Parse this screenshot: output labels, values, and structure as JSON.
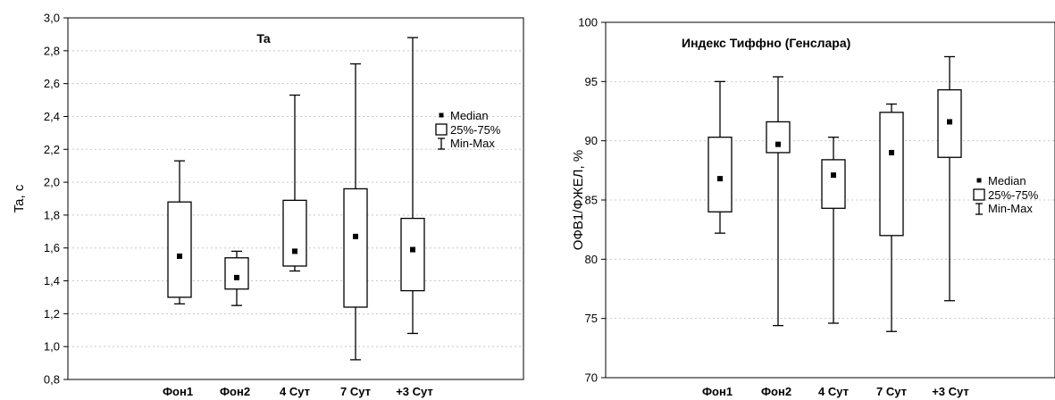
{
  "chart_data": [
    {
      "type": "boxplot",
      "title": "Ta",
      "xlabel": "",
      "ylabel": "Ta, c",
      "ylim": [
        0.8,
        3.0
      ],
      "yticks": [
        0.8,
        1.0,
        1.2,
        1.4,
        1.6,
        1.8,
        2.0,
        2.2,
        2.4,
        2.6,
        2.8,
        3.0
      ],
      "ytick_labels": [
        "0,8",
        "1,0",
        "1,2",
        "1,4",
        "1,6",
        "1,8",
        "2,0",
        "2,2",
        "2,4",
        "2,6",
        "2,8",
        "3,0"
      ],
      "grid": true,
      "legend_position": "right",
      "legend": [
        "Median",
        "25%-75%",
        "Min-Max"
      ],
      "categories": [
        "Фон1",
        "Фон2",
        "4 Сут",
        "7 Сут",
        "+3 Сут"
      ],
      "boxes": [
        {
          "min": 1.26,
          "q1": 1.3,
          "median": 1.55,
          "q3": 1.88,
          "max": 2.13
        },
        {
          "min": 1.25,
          "q1": 1.35,
          "median": 1.42,
          "q3": 1.54,
          "max": 1.58
        },
        {
          "min": 1.46,
          "q1": 1.49,
          "median": 1.58,
          "q3": 1.89,
          "max": 2.53
        },
        {
          "min": 0.92,
          "q1": 1.24,
          "median": 1.67,
          "q3": 1.96,
          "max": 2.72
        },
        {
          "min": 1.08,
          "q1": 1.34,
          "median": 1.59,
          "q3": 1.78,
          "max": 2.88
        }
      ]
    },
    {
      "type": "boxplot",
      "title": "Индекс Тиффно (Генслара)",
      "xlabel": "",
      "ylabel": "ОФВ1/ФЖЕЛ, %",
      "ylim": [
        70,
        100
      ],
      "yticks": [
        70,
        75,
        80,
        85,
        90,
        95,
        100
      ],
      "ytick_labels": [
        "70",
        "75",
        "80",
        "85",
        "90",
        "95",
        "100"
      ],
      "grid": true,
      "legend_position": "right",
      "legend": [
        "Median",
        "25%-75%",
        "Min-Max"
      ],
      "categories": [
        "Фон1",
        "Фон2",
        "4 Сут",
        "7 Сут",
        "+3 Сут"
      ],
      "boxes": [
        {
          "min": 82.2,
          "q1": 84.0,
          "median": 86.8,
          "q3": 90.3,
          "max": 95.0
        },
        {
          "min": 74.4,
          "q1": 89.0,
          "median": 89.7,
          "q3": 91.6,
          "max": 95.4
        },
        {
          "min": 74.6,
          "q1": 84.3,
          "median": 87.1,
          "q3": 88.4,
          "max": 90.3
        },
        {
          "min": 73.9,
          "q1": 82.0,
          "median": 89.0,
          "q3": 92.4,
          "max": 93.1
        },
        {
          "min": 76.5,
          "q1": 88.6,
          "median": 91.6,
          "q3": 94.3,
          "max": 97.1
        }
      ]
    }
  ]
}
